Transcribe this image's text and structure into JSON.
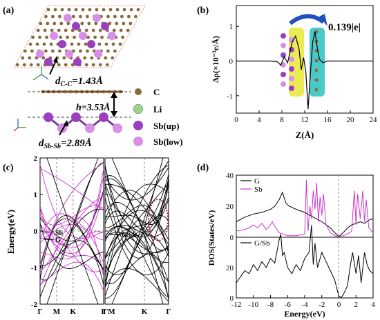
{
  "panel_a": {
    "label": "(a)",
    "d_cc": "d",
    "d_cc_sub": "C-C",
    "d_cc_val": "=1.43Å",
    "h": "h=3.53Å",
    "d_sbsb": "d",
    "d_sbsb_sub": "Sb-Sb",
    "d_sbsb_val": "=2.89Å",
    "legend": [
      "C",
      "Li",
      "Sb(up)",
      "Sb(low)"
    ],
    "colors": {
      "C": "#8a6a3c",
      "Li": "#9fd18f",
      "Sb_up": "#9b3fbf",
      "Sb_low": "#d88fe6"
    }
  },
  "panel_b": {
    "label": "(b)",
    "annotation": "0.139|e|",
    "ylabel": "Δρ(×10⁻³e/Å)",
    "xlabel": "Z(Å)"
  },
  "panel_c": {
    "label": "(c)",
    "ylabel": "Energy(eV)",
    "left_legend": [
      "Sb",
      "G"
    ],
    "right_legend": [
      "G/Sb"
    ]
  },
  "panel_d": {
    "label": "(d)",
    "ylabel": "DOS(States/eV)",
    "xlabel": "Energy(eV)",
    "top_legend": [
      "G",
      "Sb"
    ],
    "bottom_legend": [
      "G/Sb"
    ]
  },
  "chart_data": [
    {
      "type": "line",
      "panel": "b",
      "xlabel": "Z(Å)",
      "ylabel": "Δρ(×10⁻³e/Å)",
      "xlim": [
        0,
        24
      ],
      "ylim": [
        -1.5,
        1.6
      ],
      "xticks": [
        0,
        4,
        8,
        12,
        16,
        20,
        24
      ],
      "yticks": [
        -1,
        0,
        1
      ],
      "series": [
        {
          "x": [
            0,
            6,
            7.2,
            7.8,
            8.4,
            9.0,
            9.8,
            10.4,
            11.0,
            11.4,
            11.8,
            12.2,
            12.6,
            13.0,
            13.4,
            13.8,
            14.2,
            14.6,
            15.2,
            16,
            24
          ],
          "y": [
            0,
            0,
            -0.02,
            -0.12,
            0.12,
            -0.05,
            0.55,
            0.72,
            0.35,
            -0.25,
            0.1,
            -0.3,
            -1.38,
            -0.35,
            0.55,
            0.85,
            0.4,
            0.05,
            -0.05,
            0,
            0
          ]
        }
      ],
      "annotation": "0.139|e|"
    },
    {
      "type": "line",
      "panel": "c-left",
      "ylabel": "Energy(eV)",
      "ylim": [
        -2,
        2
      ],
      "yticks": [
        -2,
        -1,
        0,
        1,
        2
      ],
      "xticks": [
        "Γ",
        "M",
        "K",
        "Γ"
      ],
      "series": [
        {
          "name": "Sb"
        },
        {
          "name": "G"
        }
      ]
    },
    {
      "type": "line",
      "panel": "c-right",
      "ylim": [
        -2,
        2
      ],
      "yticks": [
        -2,
        -1,
        0,
        1,
        2
      ],
      "xticks": [
        "ΓM",
        "K",
        "Γ"
      ],
      "series": [
        {
          "name": "G/Sb"
        }
      ]
    },
    {
      "type": "line",
      "panel": "d-top",
      "ylabel": "DOS(States/eV)",
      "xlim": [
        -12,
        4
      ],
      "ylim": [
        0,
        40
      ],
      "yticks": [
        0,
        20,
        40
      ],
      "series": [
        {
          "name": "G",
          "x": [
            -12,
            -11,
            -10,
            -9,
            -8.5,
            -8,
            -7.5,
            -7,
            -6.6,
            -6.2,
            -5.8,
            -5,
            -4,
            -3,
            -2,
            -1,
            -0.5,
            0,
            0.5,
            1,
            1.5,
            2,
            2.5,
            3,
            3.5,
            4
          ],
          "y": [
            10,
            13,
            15,
            16,
            17,
            18,
            20,
            24,
            29,
            22,
            20,
            18,
            16,
            13,
            10,
            6,
            3,
            0.5,
            3,
            6,
            8,
            9,
            10,
            9,
            11,
            12
          ]
        },
        {
          "name": "Sb",
          "x": [
            -12,
            -11,
            -10.5,
            -10,
            -9.5,
            -9,
            -8.5,
            -8,
            -7.8,
            -7.5,
            -7,
            -6.5,
            -6,
            -5,
            -4,
            -3.8,
            -3.6,
            -3.4,
            -3.2,
            -3,
            -2.8,
            -2.6,
            -2.4,
            -2.2,
            -2,
            -1.8,
            -1.5,
            -1,
            -0.5,
            0,
            0.5,
            1,
            1.5,
            1.8,
            2,
            2.2,
            2.5,
            2.8,
            3,
            3.2,
            3.5,
            4
          ],
          "y": [
            4,
            5,
            6,
            8,
            6,
            9,
            5,
            8,
            10,
            7,
            3,
            2,
            1,
            1,
            2,
            37,
            4,
            20,
            12,
            30,
            18,
            35,
            10,
            26,
            14,
            28,
            8,
            3,
            1,
            0.5,
            1,
            2,
            4,
            30,
            8,
            28,
            12,
            30,
            10,
            24,
            6,
            3
          ]
        }
      ]
    },
    {
      "type": "line",
      "panel": "d-bottom",
      "xlabel": "Energy(eV)",
      "xlim": [
        -12,
        4
      ],
      "ylim": [
        0,
        40
      ],
      "xticks": [
        -12,
        -10,
        -8,
        -6,
        -4,
        -2,
        0,
        2,
        4
      ],
      "yticks": [
        0,
        20,
        40
      ],
      "series": [
        {
          "name": "G/Sb",
          "x": [
            -12,
            -11.5,
            -11,
            -10.5,
            -10,
            -9.5,
            -9,
            -8.5,
            -8,
            -7.5,
            -7,
            -6.8,
            -6.6,
            -6.4,
            -6,
            -5.5,
            -5,
            -4.5,
            -4,
            -3.5,
            -3.2,
            -3,
            -2.8,
            -2.5,
            -2,
            -1.5,
            -1,
            -0.5,
            0,
            0.3,
            0.5,
            1,
            1.3,
            1.6,
            2,
            2.3,
            2.6,
            3,
            3.3,
            3.6,
            4
          ],
          "y": [
            10,
            14,
            18,
            16,
            22,
            18,
            24,
            20,
            26,
            23,
            38,
            42,
            28,
            30,
            20,
            16,
            22,
            18,
            26,
            30,
            48,
            22,
            36,
            20,
            30,
            24,
            18,
            12,
            1,
            0.5,
            2,
            8,
            20,
            30,
            16,
            28,
            10,
            30,
            22,
            18,
            16
          ]
        }
      ]
    }
  ]
}
